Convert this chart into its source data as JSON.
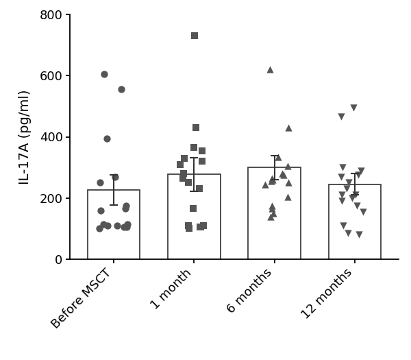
{
  "categories": [
    "Before MSCT",
    "1 month",
    "6 months",
    "12 months"
  ],
  "means": [
    226.63,
    277.2,
    299.2,
    245.24
  ],
  "sems": [
    50.0,
    54.57,
    38.66,
    35.13
  ],
  "ylabel": "IL-17A (pg/ml)",
  "ylim": [
    0,
    800
  ],
  "yticks": [
    0,
    200,
    400,
    600,
    800
  ],
  "bar_color": "#ffffff",
  "bar_edgecolor": "#404040",
  "dot_color": "#555555",
  "scatter_data": {
    "Before MSCT": [
      605,
      555,
      395,
      270,
      250,
      175,
      165,
      160,
      115,
      115,
      110,
      110,
      105,
      105,
      100
    ],
    "1 month": [
      730,
      430,
      365,
      355,
      330,
      320,
      310,
      280,
      265,
      250,
      230,
      165,
      110,
      110,
      105,
      105,
      100
    ],
    "6 months": [
      620,
      430,
      335,
      305,
      280,
      275,
      265,
      260,
      255,
      250,
      245,
      205,
      175,
      165,
      150,
      140
    ],
    "12 months": [
      495,
      465,
      300,
      290,
      275,
      270,
      250,
      230,
      210,
      210,
      200,
      190,
      175,
      155,
      110,
      85,
      80
    ]
  },
  "markers": [
    "o",
    "s",
    "^",
    "v"
  ],
  "marker_size": 55,
  "bar_width": 0.65,
  "capsize": 4,
  "elinewidth": 1.5,
  "ecapthick": 1.5,
  "jitter": 0.18
}
